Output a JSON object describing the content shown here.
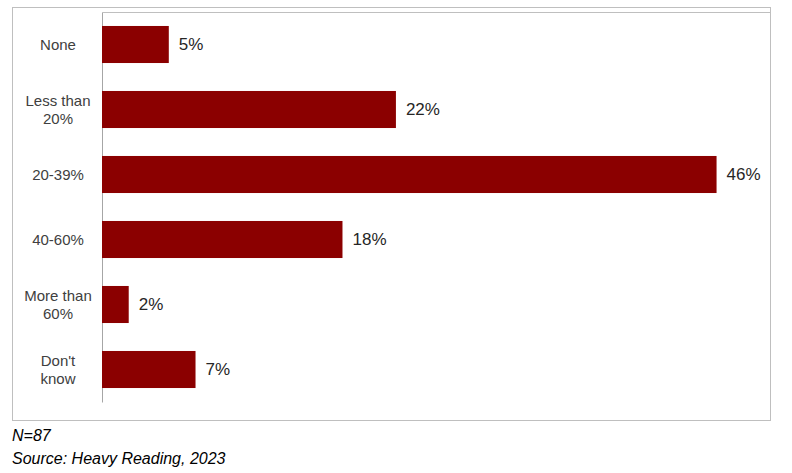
{
  "chart_data": {
    "type": "bar",
    "orientation": "horizontal",
    "categories": [
      "None",
      "Less than 20%",
      "20-39%",
      "40-60%",
      "More than 60%",
      "Don't know"
    ],
    "values": [
      5,
      22,
      46,
      18,
      2,
      7
    ],
    "value_labels": [
      "5%",
      "22%",
      "46%",
      "18%",
      "2%",
      "7%"
    ],
    "color": "#8b0000",
    "xlim": [
      0,
      50
    ],
    "xticks": [],
    "grid": false,
    "data_labels": true,
    "tick_labels": "y",
    "annotations": [
      "N=87",
      "Source: Heavy Reading, 2023"
    ]
  }
}
